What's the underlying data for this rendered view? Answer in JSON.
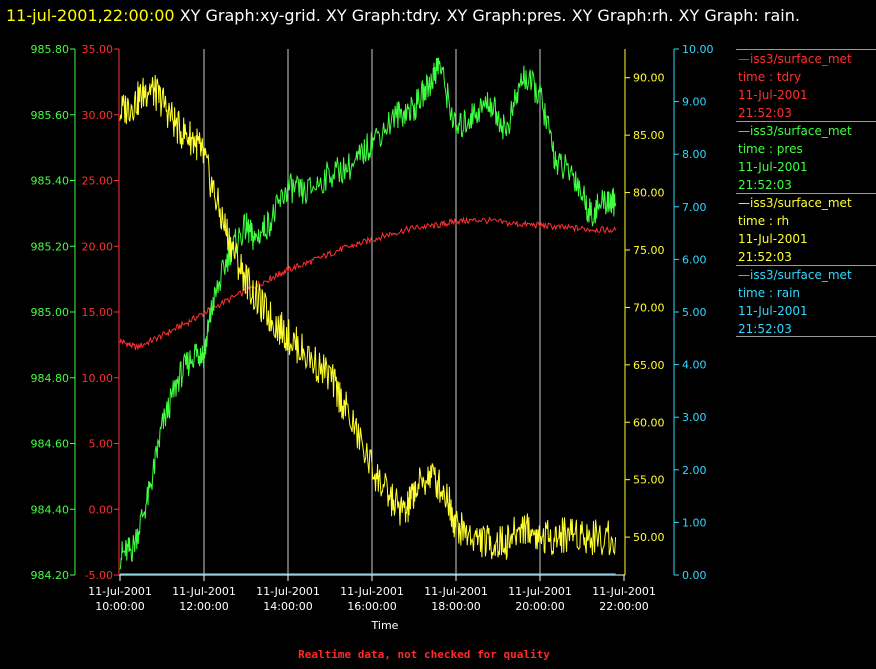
{
  "header": {
    "timestamp": "11-jul-2001,22:00:00",
    "title": "  XY Graph:xy-grid.  XY Graph:tdry.  XY Graph:pres.  XY Graph:rh.  XY Graph: rain."
  },
  "footer": {
    "text": "Realtime data, not checked for quality"
  },
  "legend": [
    {
      "line": "—iss3/surface_met",
      "var": "time : tdry",
      "date": "11-Jul-2001",
      "time": "21:52:03",
      "color": "#ff3030"
    },
    {
      "line": "—iss3/surface_met",
      "var": "time : pres",
      "date": "11-Jul-2001",
      "time": "21:52:03",
      "color": "#40ff40"
    },
    {
      "line": "—iss3/surface_met",
      "var": "time : rh",
      "date": "11-Jul-2001",
      "time": "21:52:03",
      "color": "#ffff30"
    },
    {
      "line": "—iss3/surface_met",
      "var": "time : rain",
      "date": "11-Jul-2001",
      "time": "21:52:03",
      "color": "#30d8ff"
    }
  ],
  "chart_data": {
    "type": "line",
    "xlabel": "Time",
    "x_ticks": [
      {
        "date": "11-Jul-2001",
        "time": "10:00:00",
        "hour": 10
      },
      {
        "date": "11-Jul-2001",
        "time": "12:00:00",
        "hour": 12
      },
      {
        "date": "11-Jul-2001",
        "time": "14:00:00",
        "hour": 14
      },
      {
        "date": "11-Jul-2001",
        "time": "16:00:00",
        "hour": 16
      },
      {
        "date": "11-Jul-2001",
        "time": "18:00:00",
        "hour": 18
      },
      {
        "date": "11-Jul-2001",
        "time": "20:00:00",
        "hour": 20
      },
      {
        "date": "11-Jul-2001",
        "time": "22:00:00",
        "hour": 22
      }
    ],
    "xlim_hours": [
      10,
      22
    ],
    "grid": true,
    "axes": [
      {
        "id": "pres",
        "side": "left-outer",
        "color": "#40ff40",
        "ylim": [
          984.2,
          985.8
        ],
        "ticks": [
          "984.20",
          "984.40",
          "984.60",
          "984.80",
          "985.00",
          "985.20",
          "985.40",
          "985.60",
          "985.80"
        ]
      },
      {
        "id": "tdry",
        "side": "left-inner",
        "color": "#ff3030",
        "ylim": [
          -5,
          35
        ],
        "ticks": [
          "-5.00",
          "0.00",
          "5.00",
          "10.00",
          "15.00",
          "20.00",
          "25.00",
          "30.00",
          "35.00"
        ]
      },
      {
        "id": "rh",
        "side": "right-inner",
        "color": "#ffff30",
        "ylim": [
          46.7,
          92.5
        ],
        "ticks": [
          "50.00",
          "55.00",
          "60.00",
          "65.00",
          "70.00",
          "75.00",
          "80.00",
          "85.00",
          "90.00"
        ]
      },
      {
        "id": "rain",
        "side": "right-outer",
        "color": "#30d8ff",
        "ylim": [
          0,
          10
        ],
        "ticks": [
          "0.00",
          "1.00",
          "2.00",
          "3.00",
          "4.00",
          "5.00",
          "6.00",
          "7.00",
          "8.00",
          "9.00",
          "10.00"
        ]
      }
    ],
    "series": [
      {
        "name": "time : tdry",
        "axis": "tdry",
        "color": "#ff3030",
        "x": [
          10.0,
          10.4,
          11.0,
          11.6,
          12.2,
          13.0,
          13.6,
          14.0,
          14.6,
          15.2,
          15.8,
          16.4,
          17.0,
          17.6,
          18.0,
          18.6,
          19.4,
          20.0,
          20.6,
          21.2,
          21.8
        ],
        "y": [
          12.8,
          12.3,
          13.2,
          14.2,
          15.3,
          16.6,
          17.6,
          18.2,
          18.9,
          19.7,
          20.3,
          20.9,
          21.4,
          21.6,
          21.9,
          22.0,
          21.7,
          21.6,
          21.4,
          21.3,
          21.2
        ]
      },
      {
        "name": "time : pres",
        "axis": "pres",
        "color": "#40ff40",
        "x": [
          10.0,
          10.3,
          10.7,
          11.0,
          11.4,
          11.8,
          12.0,
          12.2,
          12.6,
          13.0,
          13.2,
          13.6,
          14.0,
          14.4,
          15.0,
          15.6,
          16.0,
          16.6,
          17.0,
          17.4,
          17.6,
          18.0,
          18.4,
          18.8,
          19.2,
          19.6,
          20.0,
          20.4,
          20.8,
          21.2,
          21.6,
          21.8
        ],
        "y": [
          984.26,
          984.28,
          984.45,
          984.65,
          984.8,
          984.88,
          984.87,
          985.02,
          985.18,
          985.26,
          985.22,
          985.28,
          985.38,
          985.36,
          985.42,
          985.45,
          985.52,
          985.6,
          985.62,
          985.7,
          985.76,
          985.55,
          985.6,
          985.64,
          985.55,
          985.72,
          985.66,
          985.45,
          985.42,
          985.3,
          985.34,
          985.33
        ]
      },
      {
        "name": "time : rh",
        "axis": "rh",
        "color": "#ffff30",
        "x": [
          10.0,
          10.4,
          10.7,
          11.0,
          11.4,
          11.8,
          12.0,
          12.4,
          12.8,
          13.2,
          13.6,
          14.0,
          14.4,
          15.0,
          15.4,
          16.0,
          16.4,
          16.8,
          17.0,
          17.4,
          17.8,
          18.0,
          18.4,
          18.8,
          19.2,
          19.6,
          20.0,
          20.4,
          20.8,
          21.2,
          21.8
        ],
        "y": [
          87.0,
          88.0,
          89.2,
          88.0,
          85.5,
          84.5,
          83.0,
          78.0,
          74.0,
          71.0,
          69.0,
          67.5,
          66.0,
          64.0,
          61.0,
          56.0,
          53.5,
          52.0,
          54.0,
          55.5,
          53.5,
          51.0,
          50.0,
          49.5,
          49.5,
          51.0,
          50.0,
          50.0,
          50.5,
          50.0,
          50.0
        ]
      },
      {
        "name": "time : rain",
        "axis": "rain",
        "color": "#30d8ff",
        "x": [
          10.0,
          21.8
        ],
        "y": [
          0.02,
          0.02
        ]
      }
    ]
  }
}
